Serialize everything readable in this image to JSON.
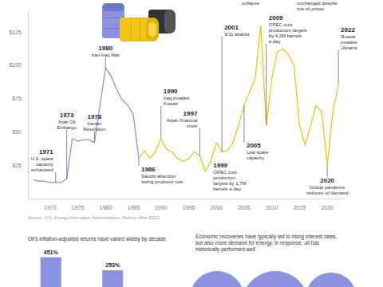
{
  "chart_data": [
    {
      "type": "line",
      "x": [
        1967,
        1968,
        1969,
        1970,
        1971,
        1972,
        1973,
        1974,
        1975,
        1976,
        1977,
        1978,
        1979,
        1980,
        1981,
        1982,
        1983,
        1984,
        1985,
        1986,
        1987,
        1988,
        1989,
        1990,
        1991,
        1992,
        1993,
        1994,
        1995,
        1996,
        1997,
        1998,
        1999,
        2000,
        2001,
        2002,
        2003,
        2004,
        2005,
        2006,
        2007,
        2008,
        2009,
        2010,
        2011,
        2012,
        2013,
        2014,
        2015,
        2016,
        2017,
        2018,
        2019,
        2020,
        2021,
        2022
      ],
      "series": [
        {
          "color": "#8b93e0",
          "values": [
            14,
            13,
            13,
            12,
            12,
            12,
            15,
            45,
            43,
            44,
            44,
            42,
            70,
            98,
            92,
            82,
            74,
            70,
            63,
            30,
            null,
            null,
            null,
            null,
            null,
            null,
            null,
            null,
            null,
            null,
            null,
            null,
            null,
            null,
            null,
            null,
            null,
            null,
            null,
            null,
            null,
            null,
            null,
            null,
            null,
            null,
            null,
            null,
            null,
            null,
            null,
            null,
            null,
            null,
            null,
            null
          ]
        },
        {
          "color": "#f2c417",
          "values": [
            null,
            null,
            null,
            null,
            null,
            null,
            null,
            null,
            null,
            null,
            null,
            null,
            null,
            null,
            null,
            null,
            null,
            null,
            null,
            30,
            36,
            30,
            35,
            45,
            37,
            35,
            30,
            28,
            30,
            35,
            32,
            20,
            28,
            42,
            35,
            36,
            42,
            55,
            70,
            80,
            90,
            130,
            55,
            90,
            110,
            112,
            108,
            100,
            55,
            40,
            55,
            70,
            65,
            25,
            65,
            85
          ]
        }
      ],
      "xlim": [
        1966,
        2023
      ],
      "xticks": [
        1970,
        1975,
        1980,
        1985,
        1990,
        1995,
        2000,
        2005,
        2010,
        2015,
        2020
      ],
      "ylim": [
        0,
        140
      ],
      "yticks": [
        {
          "value": 25,
          "label": "$25"
        },
        {
          "value": 50,
          "label": "$50"
        },
        {
          "value": 75,
          "label": "$75"
        },
        {
          "value": 100,
          "label": "$100"
        },
        {
          "value": 125,
          "label": "$125"
        }
      ],
      "grid": false,
      "annotations": [
        {
          "year": 1971,
          "text": "U.S. spare\ncapacity\nexhausted"
        },
        {
          "year": 1973,
          "text": "Arab Oil\nEmbargo"
        },
        {
          "year": 1978,
          "text": "Iranian\nRevolution"
        },
        {
          "year": 1980,
          "text": "Iran-Iraq War"
        },
        {
          "year": 1986,
          "text": "Saudis abandon\nswing producer role"
        },
        {
          "year": 1990,
          "text": "Iraq invades\nKuwait"
        },
        {
          "year": 1997,
          "text": "Asian financial\ncrisis"
        },
        {
          "year": 1999,
          "text": "OPEC cuts\nproduction\ntargets by 1.7M\nbarrels a day"
        },
        {
          "year": 2001,
          "text": "9/11 attacks"
        },
        {
          "year": 2005,
          "text": "Low spare\ncapacity"
        },
        {
          "year": 2009,
          "text": "OPEC cuts\nproduction targets\nby 4.2M barrels\na day"
        },
        {
          "year": 2020,
          "text": "Global pandemic\nreduces oil demand"
        },
        {
          "year": 2022,
          "text": "Russia\ninvades\nUkraine"
        }
      ],
      "fragments": [
        "collapse",
        "unchanged despite\nlow oil prices"
      ],
      "source": "Source: U.S. Energy Information Administration, Refinitv (Mar 2022)"
    },
    {
      "type": "bar",
      "title": "Oil's inflation-adjusted returns have varied widely by decade.",
      "categories": [
        null,
        null
      ],
      "values": [
        451,
        253
      ],
      "value_labels": [
        "451%",
        "253%"
      ],
      "color": "#8b93e0",
      "ylim": [
        0,
        460
      ],
      "data_labels": true,
      "tick_labels": false
    }
  ],
  "captions": {
    "right_panel": "Economic recoveries have typically led to rising interest rates,\nbut also more demand for energy. In response, oil has\nhistorically performed well."
  }
}
